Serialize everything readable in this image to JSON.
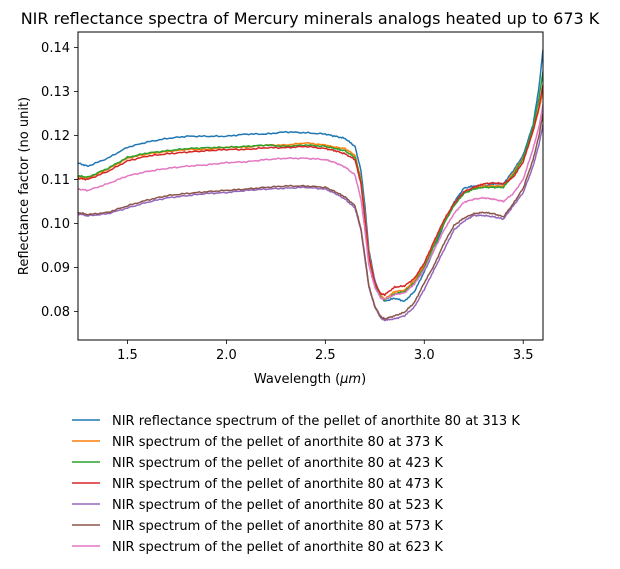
{
  "chart_data": {
    "type": "line",
    "title": "NIR reflectance spectra of Mercury minerals analogs heated up to 673 K",
    "xlabel_prefix": "Wavelength (",
    "xlabel_symbol": "μm",
    "xlabel_suffix": ")",
    "ylabel": "Reflectance factor (no unit)",
    "xlim": [
      1.25,
      3.6
    ],
    "ylim": [
      0.0735,
      0.1435
    ],
    "xticks": [
      1.5,
      2.0,
      2.5,
      3.0,
      3.5
    ],
    "xtick_labels": [
      "1.5",
      "2.0",
      "2.5",
      "3.0",
      "3.5"
    ],
    "yticks": [
      0.08,
      0.09,
      0.1,
      0.11,
      0.12,
      0.13,
      0.14
    ],
    "ytick_labels": [
      "0.08",
      "0.09",
      "0.10",
      "0.11",
      "0.12",
      "0.13",
      "0.14"
    ],
    "grid": false,
    "legend_position": "below-plot",
    "x": [
      1.25,
      1.3,
      1.4,
      1.5,
      1.6,
      1.7,
      1.8,
      1.9,
      2.0,
      2.1,
      2.2,
      2.3,
      2.4,
      2.5,
      2.55,
      2.6,
      2.65,
      2.68,
      2.7,
      2.72,
      2.75,
      2.78,
      2.8,
      2.85,
      2.9,
      2.95,
      3.0,
      3.05,
      3.1,
      3.15,
      3.2,
      3.25,
      3.3,
      3.35,
      3.4,
      3.45,
      3.5,
      3.55,
      3.58,
      3.6
    ],
    "series": [
      {
        "name": "NIR reflectance spectrum of the pellet of anorthite 80 at 313 K",
        "color": "#1f77b4",
        "values": [
          0.1137,
          0.113,
          0.1148,
          0.1173,
          0.1185,
          0.1193,
          0.1198,
          0.1198,
          0.1198,
          0.1203,
          0.1203,
          0.1208,
          0.1206,
          0.1203,
          0.1198,
          0.1193,
          0.1175,
          0.112,
          0.104,
          0.094,
          0.087,
          0.0835,
          0.0823,
          0.083,
          0.0823,
          0.0845,
          0.089,
          0.094,
          0.1,
          0.1048,
          0.108,
          0.1085,
          0.1085,
          0.109,
          0.109,
          0.112,
          0.1155,
          0.1225,
          0.131,
          0.1395
        ]
      },
      {
        "name": "NIR spectrum of the pellet of anorthite 80 at 373 K",
        "color": "#ff7f0e",
        "values": [
          0.1105,
          0.1103,
          0.1123,
          0.1148,
          0.1158,
          0.1163,
          0.1168,
          0.1168,
          0.1173,
          0.1173,
          0.1178,
          0.1178,
          0.1183,
          0.1178,
          0.1173,
          0.117,
          0.1155,
          0.11,
          0.102,
          0.093,
          0.0865,
          0.0835,
          0.0828,
          0.0845,
          0.0848,
          0.087,
          0.0905,
          0.0955,
          0.1005,
          0.1045,
          0.107,
          0.108,
          0.1085,
          0.1085,
          0.1085,
          0.1115,
          0.115,
          0.121,
          0.126,
          0.13
        ]
      },
      {
        "name": "NIR spectrum of the pellet of anorthite 80 at 423 K",
        "color": "#2ca02c",
        "values": [
          0.1108,
          0.1105,
          0.1125,
          0.115,
          0.116,
          0.1165,
          0.117,
          0.1172,
          0.1173,
          0.1175,
          0.1178,
          0.1175,
          0.1178,
          0.1175,
          0.117,
          0.1165,
          0.115,
          0.1095,
          0.1015,
          0.0925,
          0.086,
          0.0832,
          0.0825,
          0.084,
          0.0845,
          0.0865,
          0.09,
          0.095,
          0.1,
          0.104,
          0.1068,
          0.1078,
          0.1082,
          0.1082,
          0.1082,
          0.111,
          0.1148,
          0.122,
          0.1285,
          0.1345
        ]
      },
      {
        "name": "NIR spectrum of the pellet of anorthite 80 at 473 K",
        "color": "#d62728",
        "values": [
          0.1102,
          0.11,
          0.1118,
          0.1142,
          0.1153,
          0.1158,
          0.1162,
          0.1165,
          0.1168,
          0.1168,
          0.1172,
          0.1172,
          0.1175,
          0.117,
          0.1165,
          0.1158,
          0.1145,
          0.109,
          0.1012,
          0.0925,
          0.0865,
          0.084,
          0.0838,
          0.0855,
          0.0858,
          0.0875,
          0.091,
          0.096,
          0.1008,
          0.1045,
          0.1072,
          0.1082,
          0.109,
          0.1092,
          0.109,
          0.1105,
          0.114,
          0.121,
          0.1265,
          0.1315
        ]
      },
      {
        "name": "NIR spectrum of the pellet of anorthite 80 at 523 K",
        "color": "#9467bd",
        "values": [
          0.1022,
          0.1017,
          0.1022,
          0.1035,
          0.1048,
          0.1058,
          0.1063,
          0.1068,
          0.107,
          0.1075,
          0.1078,
          0.108,
          0.1082,
          0.1078,
          0.1068,
          0.1055,
          0.1035,
          0.0985,
          0.092,
          0.0855,
          0.081,
          0.0785,
          0.078,
          0.0783,
          0.079,
          0.081,
          0.085,
          0.0895,
          0.094,
          0.0985,
          0.1005,
          0.1018,
          0.1018,
          0.1015,
          0.101,
          0.104,
          0.107,
          0.113,
          0.118,
          0.1225
        ]
      },
      {
        "name": "NIR spectrum of the pellet of anorthite 80 at 573 K",
        "color": "#8c564b",
        "values": [
          0.1025,
          0.102,
          0.1025,
          0.104,
          0.1053,
          0.1063,
          0.1068,
          0.1072,
          0.1075,
          0.1078,
          0.1082,
          0.1085,
          0.1085,
          0.1082,
          0.1072,
          0.106,
          0.104,
          0.0988,
          0.0925,
          0.0858,
          0.0812,
          0.0788,
          0.0783,
          0.079,
          0.0798,
          0.082,
          0.0865,
          0.0905,
          0.0955,
          0.0995,
          0.1012,
          0.1022,
          0.1025,
          0.1022,
          0.1015,
          0.1045,
          0.108,
          0.1145,
          0.12,
          0.125
        ]
      },
      {
        "name": "NIR spectrum of the pellet of anorthite 80 at 623 K",
        "color": "#e377c2",
        "values": [
          0.1078,
          0.1075,
          0.109,
          0.1108,
          0.1118,
          0.1125,
          0.113,
          0.1133,
          0.1138,
          0.114,
          0.1145,
          0.1148,
          0.1148,
          0.1145,
          0.1138,
          0.1128,
          0.111,
          0.1055,
          0.0985,
          0.0905,
          0.0855,
          0.083,
          0.0828,
          0.0838,
          0.0842,
          0.0862,
          0.0895,
          0.094,
          0.0985,
          0.1022,
          0.1048,
          0.1055,
          0.1058,
          0.1055,
          0.105,
          0.1068,
          0.11,
          0.117,
          0.122,
          0.127
        ]
      }
    ]
  }
}
